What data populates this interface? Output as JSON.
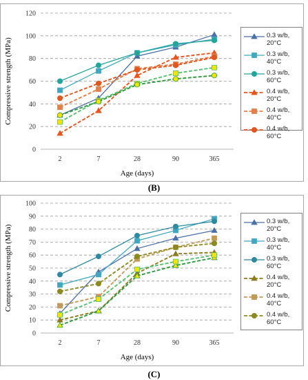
{
  "chart_data": [
    {
      "panel_label": "(B)",
      "type": "line",
      "categories": [
        "2",
        "7",
        "28",
        "90",
        "365"
      ],
      "xlabel": "Age (days)",
      "ylabel": "Compressive strength (MPa)",
      "ylim": [
        0,
        120
      ],
      "yticks": [
        0,
        20,
        40,
        60,
        80,
        100,
        120
      ],
      "grid": "horizontal dashed",
      "legend_position": "right",
      "series": [
        {
          "name": "0.3 w/b, 20°C",
          "values": [
            30,
            45,
            82,
            90,
            101
          ],
          "color": "#4a6ea8",
          "dash": false,
          "marker": "triangle"
        },
        {
          "name": "0.3 w/b, 40°C",
          "values": [
            52,
            69,
            85,
            92,
            97
          ],
          "color": "#3fa8c0",
          "dash": false,
          "marker": "square"
        },
        {
          "name": "0.3 w/b, 60°C",
          "values": [
            60,
            74,
            85,
            93,
            96
          ],
          "color": "#22a59a",
          "dash": false,
          "marker": "circle"
        },
        {
          "name": "0.4 w/b, 20°C",
          "values": [
            14,
            34,
            65,
            81,
            85
          ],
          "color": "#e8541c",
          "dash": true,
          "marker": "triangle"
        },
        {
          "name": "0.4 w/b, 40°C",
          "values": [
            37,
            53,
            71,
            75,
            82
          ],
          "color": "#e3804a",
          "dash": true,
          "marker": "square"
        },
        {
          "name": "0.4 w/b, 60°C",
          "values": [
            45,
            58,
            70,
            74,
            81
          ],
          "color": "#e0561c",
          "dash": true,
          "marker": "circle"
        },
        {
          "name": "",
          "values": [
            24,
            43,
            58,
            67,
            72
          ],
          "color": "#56c070",
          "dash": true,
          "marker": "square-yellow"
        },
        {
          "name": "",
          "values": [
            30,
            42,
            57,
            62,
            65
          ],
          "color": "#2e9a3e",
          "dash": true,
          "marker": "circle-yellow"
        }
      ]
    },
    {
      "panel_label": "(C)",
      "type": "line",
      "categories": [
        "2",
        "7",
        "28",
        "90",
        "365"
      ],
      "xlabel": "Age (days)",
      "ylabel": "Compressive strength (MPa)",
      "ylim": [
        0,
        100
      ],
      "yticks": [
        0,
        10,
        20,
        30,
        40,
        50,
        60,
        70,
        80,
        90,
        100
      ],
      "grid": "horizontal dashed",
      "legend_position": "right",
      "series": [
        {
          "name": "0.3 w/b, 20°C",
          "values": [
            15,
            47,
            65,
            73,
            79
          ],
          "color": "#4a6ea8",
          "dash": false,
          "marker": "triangle"
        },
        {
          "name": "0.3 w/b, 40°C",
          "values": [
            37,
            45,
            71,
            79,
            88
          ],
          "color": "#3fa8c0",
          "dash": false,
          "marker": "square"
        },
        {
          "name": "0.3 w/b, 60°C",
          "values": [
            45,
            59,
            75,
            82,
            86
          ],
          "color": "#2e8aa0",
          "dash": false,
          "marker": "circle"
        },
        {
          "name": "0.4 w/b, 20°C",
          "values": [
            10,
            17,
            46,
            61,
            62
          ],
          "color": "#8c7a1e",
          "dash": true,
          "marker": "triangle"
        },
        {
          "name": "0.4 w/b, 40°C",
          "values": [
            21,
            28,
            57,
            66,
            73
          ],
          "color": "#c09a56",
          "dash": true,
          "marker": "square"
        },
        {
          "name": "0.4 w/b, 60°C",
          "values": [
            32,
            38,
            59,
            66,
            69
          ],
          "color": "#8c8a1e",
          "dash": true,
          "marker": "circle"
        },
        {
          "name": "",
          "values": [
            6,
            17,
            44,
            52,
            58
          ],
          "color": "#2e9a3e",
          "dash": true,
          "marker": "triangle-yellow"
        },
        {
          "name": "",
          "values": [
            14,
            26,
            49,
            55,
            60
          ],
          "color": "#56c070",
          "dash": true,
          "marker": "square-yellow"
        }
      ]
    }
  ]
}
